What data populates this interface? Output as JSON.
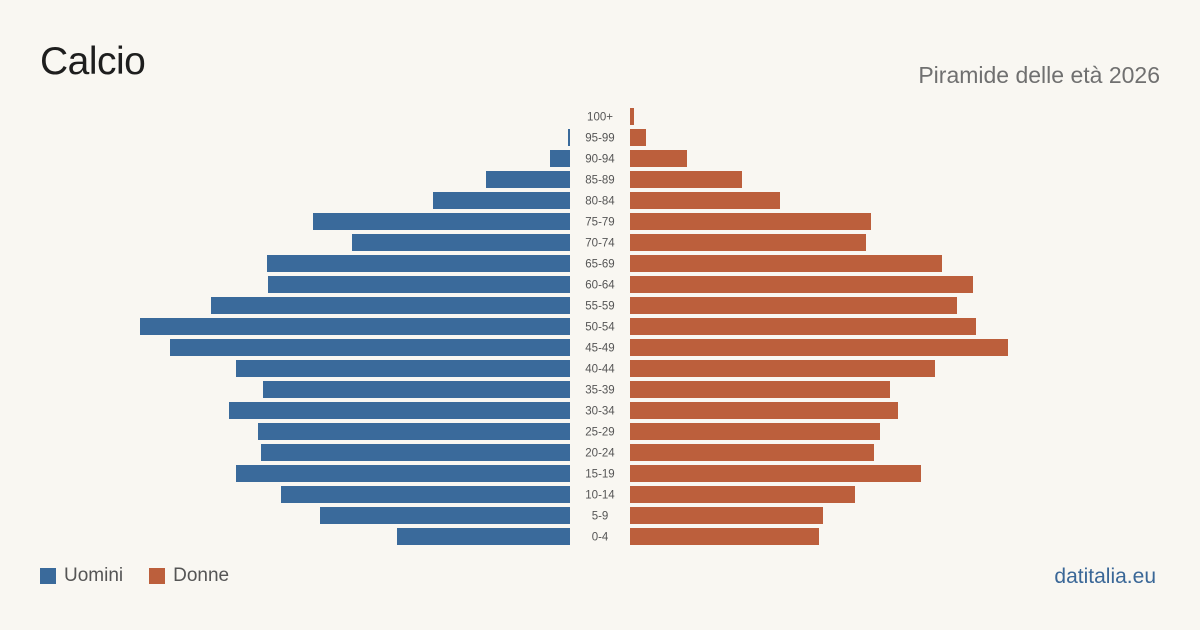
{
  "header": {
    "title": "Calcio",
    "subtitle": "Piramide delle età 2026"
  },
  "legend": {
    "men_label": "Uomini",
    "women_label": "Donne"
  },
  "brand": "datitalia.eu",
  "colors": {
    "men": "#3a6a9b",
    "women": "#bc5f3c",
    "background": "#f9f7f2"
  },
  "chart_data": {
    "type": "bar",
    "orientation": "population-pyramid",
    "categories": [
      "100+",
      "95-99",
      "90-94",
      "85-89",
      "80-84",
      "75-79",
      "70-74",
      "65-69",
      "60-64",
      "55-59",
      "50-54",
      "45-49",
      "40-44",
      "35-39",
      "30-34",
      "25-29",
      "20-24",
      "15-19",
      "10-14",
      "5-9",
      "0-4"
    ],
    "series": [
      {
        "name": "Uomini",
        "values": [
          0,
          2,
          20,
          84,
          137,
          257,
          218,
          303,
          302,
          359,
          430,
          400,
          334,
          307,
          341,
          312,
          309,
          334,
          289,
          250,
          173
        ]
      },
      {
        "name": "Donne",
        "values": [
          4,
          16,
          57,
          112,
          150,
          241,
          236,
          312,
          343,
          327,
          346,
          378,
          305,
          260,
          268,
          250,
          244,
          291,
          225,
          193,
          189
        ]
      }
    ],
    "legend_position": "bottom-left"
  }
}
